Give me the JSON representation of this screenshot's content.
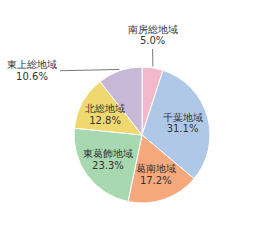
{
  "chart_data": {
    "type": "pie",
    "categories": [
      "南房総地域",
      "千葉地域",
      "葛南地域",
      "東葛飾地域",
      "北総地域",
      "東上総地域"
    ],
    "values": [
      5.0,
      31.1,
      17.2,
      23.3,
      12.8,
      10.6
    ],
    "value_labels": [
      "5.0%",
      "31.1%",
      "17.2%",
      "23.3%",
      "12.8%",
      "10.6%"
    ],
    "colors": [
      "#f4b8cc",
      "#b0c8e8",
      "#f4a87c",
      "#a8d8b0",
      "#f0d870",
      "#c8b8d8"
    ],
    "data_labels": true
  }
}
